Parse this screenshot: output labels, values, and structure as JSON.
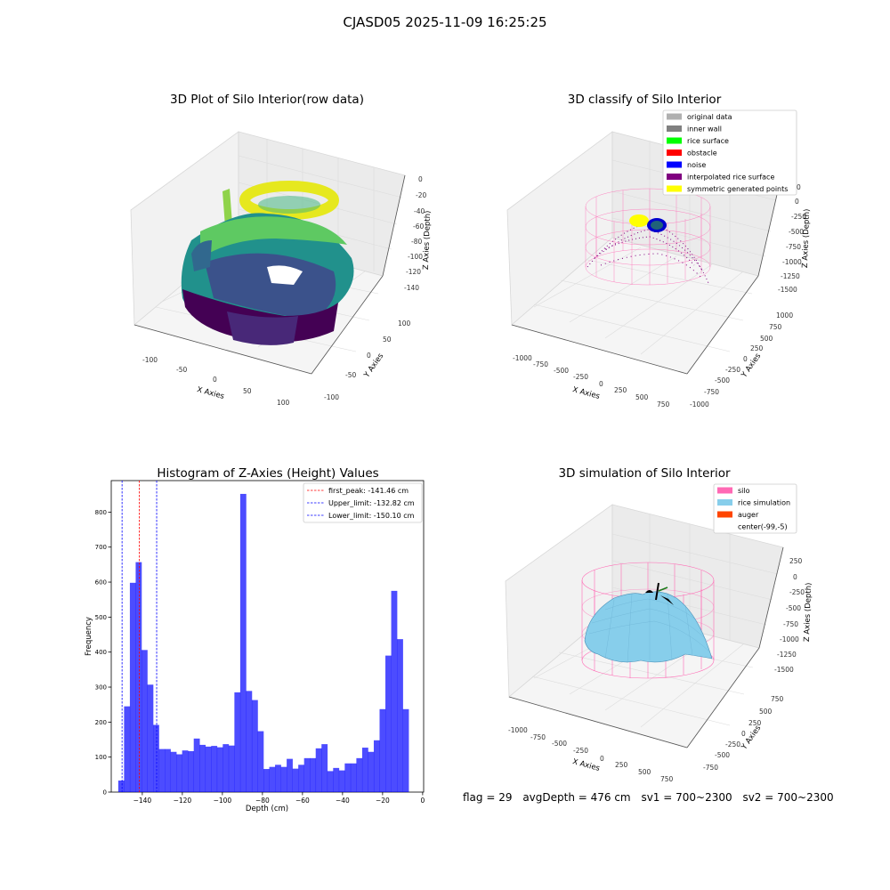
{
  "suptitle": "CJASD05 2025-11-09 16:25:25",
  "panels": {
    "raw": {
      "title": "3D Plot of Silo Interior(row data)",
      "xlabel": "X Axies",
      "ylabel": "Y Axies",
      "zlabel": "Z Axies (Depth)",
      "xticks": [
        "-100",
        "-50",
        "0",
        "50",
        "100"
      ],
      "yticks": [
        "100",
        "50",
        "0",
        "-50",
        "-100"
      ],
      "zticks": [
        "0",
        "-20",
        "-40",
        "-60",
        "-80",
        "-100",
        "-120",
        "-140"
      ]
    },
    "classify": {
      "title": "3D classify of Silo Interior",
      "xlabel": "X Axies",
      "ylabel": "Y Axies",
      "zlabel": "Z Axies (Depth)",
      "xticks": [
        "-1000",
        "-750",
        "-500",
        "-250",
        "0",
        "250",
        "500",
        "750"
      ],
      "yticks": [
        "1000",
        "750",
        "500",
        "250",
        "0",
        "-250",
        "-500",
        "-750",
        "-1000"
      ],
      "zticks": [
        "0",
        "-250",
        "-500",
        "-750",
        "-1000",
        "-1250",
        "-1500"
      ],
      "partial_top_tick": "0",
      "legend": [
        {
          "label": "original data",
          "color": "#b0b0b0"
        },
        {
          "label": "inner wall",
          "color": "#808080"
        },
        {
          "label": "rice surface",
          "color": "#00ff00"
        },
        {
          "label": "obstacle",
          "color": "#ff0000"
        },
        {
          "label": "noise",
          "color": "#0000ff"
        },
        {
          "label": "interpolated rice surface",
          "color": "#800080"
        },
        {
          "label": "symmetric generated points",
          "color": "#ffff00"
        }
      ]
    },
    "simulation": {
      "title": "3D simulation of Silo Interior",
      "xlabel": "X Axies",
      "ylabel": "Y Axies",
      "zlabel": "Z Axies (Depth)",
      "xticks": [
        "-1000",
        "-750",
        "-500",
        "-250",
        "0",
        "250",
        "500",
        "750"
      ],
      "yticks": [
        "750",
        "500",
        "250",
        "0",
        "-250",
        "-500",
        "-750"
      ],
      "zticks": [
        "250",
        "0",
        "-250",
        "-500",
        "-750",
        "-1000",
        "-1250",
        "-1500"
      ],
      "legend": [
        {
          "label": "silo",
          "color": "#ff69b4"
        },
        {
          "label": "rice simulation",
          "color": "#87ceeb"
        },
        {
          "label": "auger",
          "color": "#ff4500"
        },
        {
          "label": "center(-99,-5)",
          "color": "#ffffff"
        }
      ]
    }
  },
  "chart_data": [
    {
      "type": "scatter",
      "title": "3D Plot of Silo Interior(row data)",
      "xlabel": "X Axies",
      "ylabel": "Y Axies",
      "zlabel": "Z Axies (Depth)",
      "xlim": [
        -125,
        125
      ],
      "ylim": [
        -125,
        125
      ],
      "zlim": [
        -155,
        5
      ],
      "colormap": "viridis"
    },
    {
      "type": "scatter",
      "title": "3D classify of Silo Interior",
      "xlabel": "X Axies",
      "ylabel": "Y Axies",
      "zlabel": "Z Axies (Depth)",
      "xlim": [
        -1100,
        850
      ],
      "ylim": [
        -1100,
        1100
      ],
      "zlim": [
        -1600,
        100
      ]
    },
    {
      "type": "bar",
      "title": "Histogram of Z-Axies (Height) Values",
      "xlabel": "Depth (cm)",
      "ylabel": "Frequency",
      "xlim": [
        -155.5,
        0.5
      ],
      "ylim": [
        0,
        890
      ],
      "xticks": [
        -140,
        -120,
        -100,
        -80,
        -60,
        -40,
        -20,
        0
      ],
      "yticks": [
        0,
        100,
        200,
        300,
        400,
        500,
        600,
        700,
        800
      ],
      "bar_color": "#0000ff",
      "bins_start": -152.0,
      "bin_width": 2.9,
      "values": [
        33,
        245,
        598,
        657,
        406,
        307,
        192,
        123,
        123,
        115,
        108,
        119,
        117,
        153,
        135,
        130,
        132,
        128,
        137,
        133,
        285,
        852,
        289,
        263,
        174,
        66,
        72,
        78,
        72,
        95,
        67,
        78,
        97,
        97,
        125,
        137,
        60,
        69,
        62,
        82,
        82,
        97,
        127,
        115,
        148,
        237,
        390,
        575,
        437,
        237
      ],
      "vlines": [
        {
          "label": "first_peak: -141.46 cm",
          "x": -141.46,
          "color": "#ff0000"
        },
        {
          "label": "Upper_limit: -132.82 cm",
          "x": -132.82,
          "color": "#0000ff"
        },
        {
          "label": "Lower_limit: -150.10 cm",
          "x": -150.1,
          "color": "#0000ff"
        }
      ]
    },
    {
      "type": "surface",
      "title": "3D simulation of Silo Interior",
      "xlabel": "X Axies",
      "ylabel": "Y Axies",
      "zlabel": "Z Axies (Depth)",
      "xlim": [
        -1100,
        850
      ],
      "ylim": [
        -850,
        850
      ],
      "zlim": [
        -1600,
        350
      ]
    }
  ],
  "status": {
    "flag": "flag = 29",
    "avg_depth": "avgDepth = 476 cm",
    "sv1": "sv1 = 700~2300",
    "sv2": "sv2 = 700~2300"
  }
}
